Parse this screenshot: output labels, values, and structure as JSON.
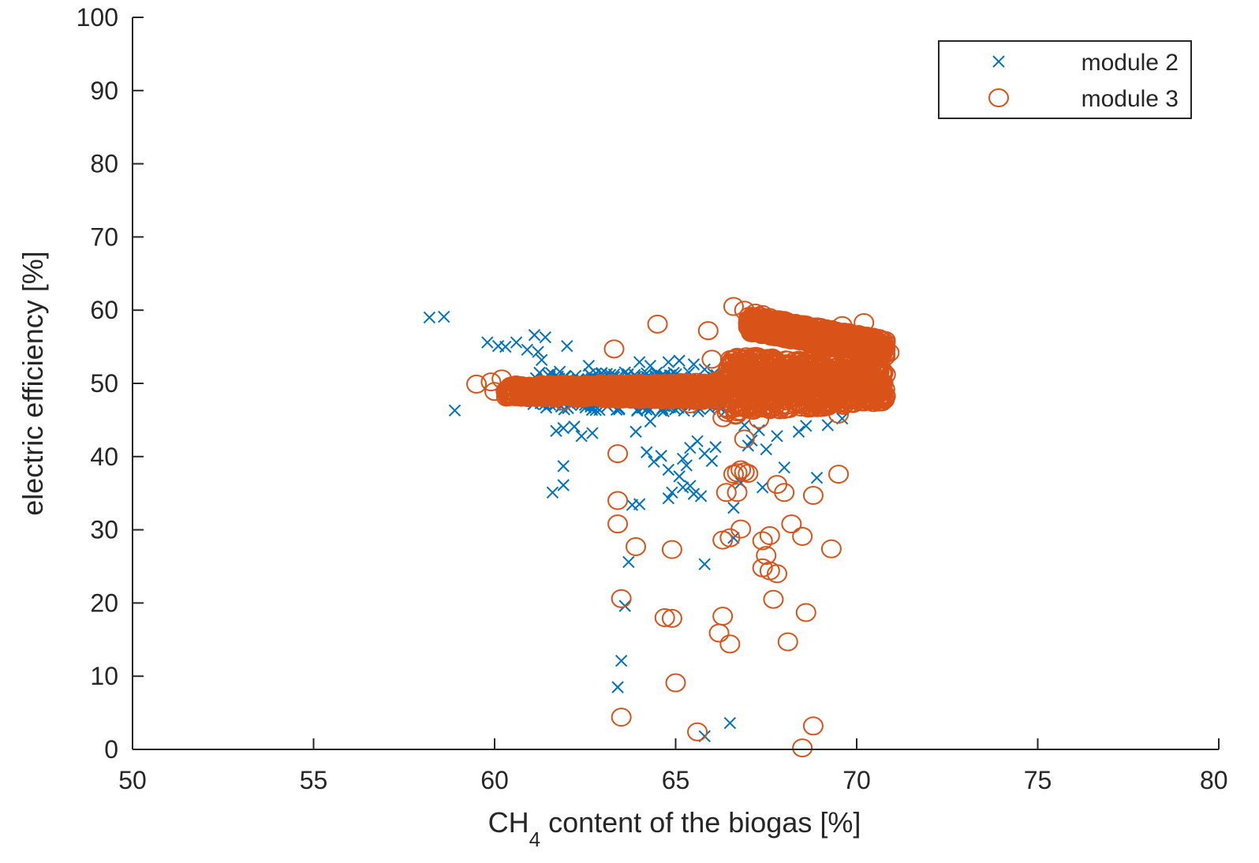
{
  "chart_data": {
    "type": "scatter",
    "xlabel_parts": {
      "main": "CH",
      "subscript": "4",
      "rest": " content of the biogas [%]"
    },
    "ylabel": "electric efficiency [%]",
    "xlim": [
      50,
      80
    ],
    "ylim": [
      0,
      100
    ],
    "xticks": [
      50,
      55,
      60,
      65,
      70,
      75,
      80
    ],
    "yticks": [
      0,
      10,
      20,
      30,
      40,
      50,
      60,
      70,
      80,
      90,
      100
    ],
    "grid": false,
    "legend_position": "top-right",
    "colors": {
      "module_2": "#0072BD",
      "module_3": "#D95319",
      "axis": "#262626"
    },
    "series": [
      {
        "name": "module 2",
        "marker": "x",
        "points": [
          [
            58.2,
            59.0
          ],
          [
            58.6,
            59.1
          ],
          [
            58.9,
            46.3
          ],
          [
            59.8,
            55.6
          ],
          [
            60.1,
            55.1
          ],
          [
            60.3,
            55.0
          ],
          [
            60.6,
            55.6
          ],
          [
            60.9,
            54.6
          ],
          [
            61.1,
            56.6
          ],
          [
            61.4,
            56.3
          ],
          [
            61.2,
            54.3
          ],
          [
            61.3,
            53.2
          ],
          [
            62.0,
            55.1
          ],
          [
            61.7,
            43.5
          ],
          [
            61.9,
            43.9
          ],
          [
            62.2,
            44.1
          ],
          [
            62.4,
            42.8
          ],
          [
            62.7,
            43.2
          ],
          [
            61.9,
            38.7
          ],
          [
            61.6,
            35.1
          ],
          [
            61.9,
            36.1
          ],
          [
            62.6,
            52.4
          ],
          [
            63.1,
            51.3
          ],
          [
            63.6,
            51.5
          ],
          [
            63.8,
            33.4
          ],
          [
            64.0,
            33.5
          ],
          [
            63.7,
            25.6
          ],
          [
            63.6,
            19.6
          ],
          [
            63.5,
            12.1
          ],
          [
            63.4,
            8.5
          ],
          [
            64.0,
            52.9
          ],
          [
            64.3,
            52.4
          ],
          [
            64.8,
            52.9
          ],
          [
            65.1,
            53.1
          ],
          [
            65.5,
            52.6
          ],
          [
            65.8,
            51.9
          ],
          [
            64.2,
            40.6
          ],
          [
            64.4,
            39.3
          ],
          [
            64.6,
            40.1
          ],
          [
            64.8,
            38.2
          ],
          [
            65.1,
            37.3
          ],
          [
            65.2,
            35.8
          ],
          [
            64.8,
            34.3
          ],
          [
            64.9,
            35.1
          ],
          [
            65.4,
            36.0
          ],
          [
            65.5,
            34.9
          ],
          [
            65.7,
            34.6
          ],
          [
            65.2,
            39.7
          ],
          [
            65.4,
            41.2
          ],
          [
            65.6,
            42.1
          ],
          [
            65.8,
            40.4
          ],
          [
            65.3,
            38.8
          ],
          [
            66.0,
            39.4
          ],
          [
            66.1,
            41.3
          ],
          [
            65.8,
            25.3
          ],
          [
            65.8,
            1.8
          ],
          [
            66.5,
            3.6
          ],
          [
            66.6,
            33.0
          ],
          [
            66.6,
            28.9
          ],
          [
            66.8,
            36.4
          ],
          [
            67.1,
            42.2
          ],
          [
            67.3,
            43.6
          ],
          [
            67.5,
            41.0
          ],
          [
            67.8,
            42.8
          ],
          [
            68.0,
            38.5
          ],
          [
            68.4,
            43.4
          ],
          [
            68.9,
            37.1
          ],
          [
            69.2,
            44.3
          ],
          [
            69.6,
            45.2
          ],
          [
            66.9,
            44.3
          ],
          [
            67.0,
            41.5
          ],
          [
            67.4,
            35.8
          ],
          [
            64.3,
            44.8
          ],
          [
            64.6,
            46.3
          ],
          [
            63.5,
            49.5
          ],
          [
            62.9,
            50.7
          ],
          [
            62.3,
            49.6
          ],
          [
            61.8,
            51.6
          ],
          [
            70.0,
            49.6
          ],
          [
            70.3,
            49.5
          ],
          [
            70.5,
            50.2
          ],
          [
            69.8,
            49.9
          ],
          [
            68.6,
            44.2
          ],
          [
            63.9,
            43.4
          ]
        ]
      },
      {
        "name": "module 3",
        "marker": "o",
        "points": [
          [
            59.5,
            49.9
          ],
          [
            59.9,
            50.2
          ],
          [
            60.2,
            50.6
          ],
          [
            60.0,
            48.9
          ],
          [
            60.5,
            48.4
          ],
          [
            60.8,
            49.6
          ],
          [
            63.3,
            54.7
          ],
          [
            64.5,
            58.1
          ],
          [
            65.9,
            57.2
          ],
          [
            66.0,
            53.3
          ],
          [
            66.6,
            60.5
          ],
          [
            66.9,
            60.0
          ],
          [
            67.2,
            59.6
          ],
          [
            67.4,
            59.4
          ],
          [
            67.6,
            59.0
          ],
          [
            68.0,
            58.6
          ],
          [
            68.3,
            58.2
          ],
          [
            68.8,
            57.4
          ],
          [
            69.3,
            56.8
          ],
          [
            69.6,
            57.9
          ],
          [
            70.2,
            58.3
          ],
          [
            70.4,
            55.6
          ],
          [
            70.7,
            54.7
          ],
          [
            70.9,
            54.2
          ],
          [
            69.5,
            45.8
          ],
          [
            69.5,
            37.6
          ],
          [
            69.3,
            27.4
          ],
          [
            68.8,
            34.7
          ],
          [
            68.5,
            29.1
          ],
          [
            68.6,
            18.7
          ],
          [
            68.8,
            3.2
          ],
          [
            68.5,
            0.2
          ],
          [
            68.1,
            14.7
          ],
          [
            68.2,
            30.8
          ],
          [
            68.0,
            35.1
          ],
          [
            67.8,
            36.2
          ],
          [
            67.7,
            20.5
          ],
          [
            67.8,
            24.0
          ],
          [
            67.6,
            24.4
          ],
          [
            67.4,
            24.8
          ],
          [
            67.5,
            26.5
          ],
          [
            67.4,
            28.5
          ],
          [
            67.6,
            29.2
          ],
          [
            66.7,
            37.8
          ],
          [
            66.8,
            38.2
          ],
          [
            66.6,
            37.6
          ],
          [
            66.9,
            37.9
          ],
          [
            67.0,
            37.7
          ],
          [
            66.7,
            35.1
          ],
          [
            66.4,
            35.1
          ],
          [
            66.3,
            28.6
          ],
          [
            66.5,
            28.9
          ],
          [
            66.8,
            30.1
          ],
          [
            66.5,
            14.4
          ],
          [
            66.2,
            15.9
          ],
          [
            66.3,
            18.2
          ],
          [
            65.6,
            2.4
          ],
          [
            64.9,
            27.3
          ],
          [
            64.7,
            18.0
          ],
          [
            64.9,
            17.9
          ],
          [
            65.0,
            9.1
          ],
          [
            63.5,
            4.4
          ],
          [
            63.5,
            20.6
          ],
          [
            63.4,
            30.8
          ],
          [
            63.4,
            34.0
          ],
          [
            63.4,
            40.4
          ],
          [
            63.9,
            27.7
          ],
          [
            67.3,
            45.1
          ],
          [
            67.9,
            49.1
          ],
          [
            68.4,
            51.8
          ],
          [
            69.0,
            52.6
          ],
          [
            69.9,
            51.3
          ],
          [
            70.8,
            51.2
          ],
          [
            70.4,
            53.6
          ],
          [
            66.1,
            50.3
          ],
          [
            65.4,
            47.2
          ],
          [
            64.6,
            48.6
          ],
          [
            63.8,
            48.0
          ],
          [
            62.9,
            48.1
          ],
          [
            61.9,
            47.6
          ],
          [
            61.2,
            49.1
          ],
          [
            66.3,
            45.3
          ],
          [
            66.9,
            42.4
          ],
          [
            67.6,
            46.4
          ]
        ]
      }
    ],
    "dense_regions": [
      {
        "series": "module 3",
        "x": [
          60.3,
          66.2
        ],
        "y_start": [
          48.1,
          49.8
        ],
        "y_end": [
          47.6,
          50.2
        ]
      },
      {
        "series": "module 3",
        "x": [
          66.4,
          70.8
        ],
        "y_start": [
          45.5,
          54.0
        ],
        "y_end": [
          47.5,
          52.5
        ]
      },
      {
        "series": "module 3",
        "x": [
          67.0,
          70.8
        ],
        "y_start": [
          57.0,
          59.5
        ],
        "y_end": [
          53.5,
          56.0
        ]
      },
      {
        "series": "module 2",
        "x": [
          61.0,
          66.5
        ],
        "y_start": [
          46.5,
          51.5
        ],
        "y_end": [
          46.0,
          51.5
        ]
      }
    ]
  }
}
